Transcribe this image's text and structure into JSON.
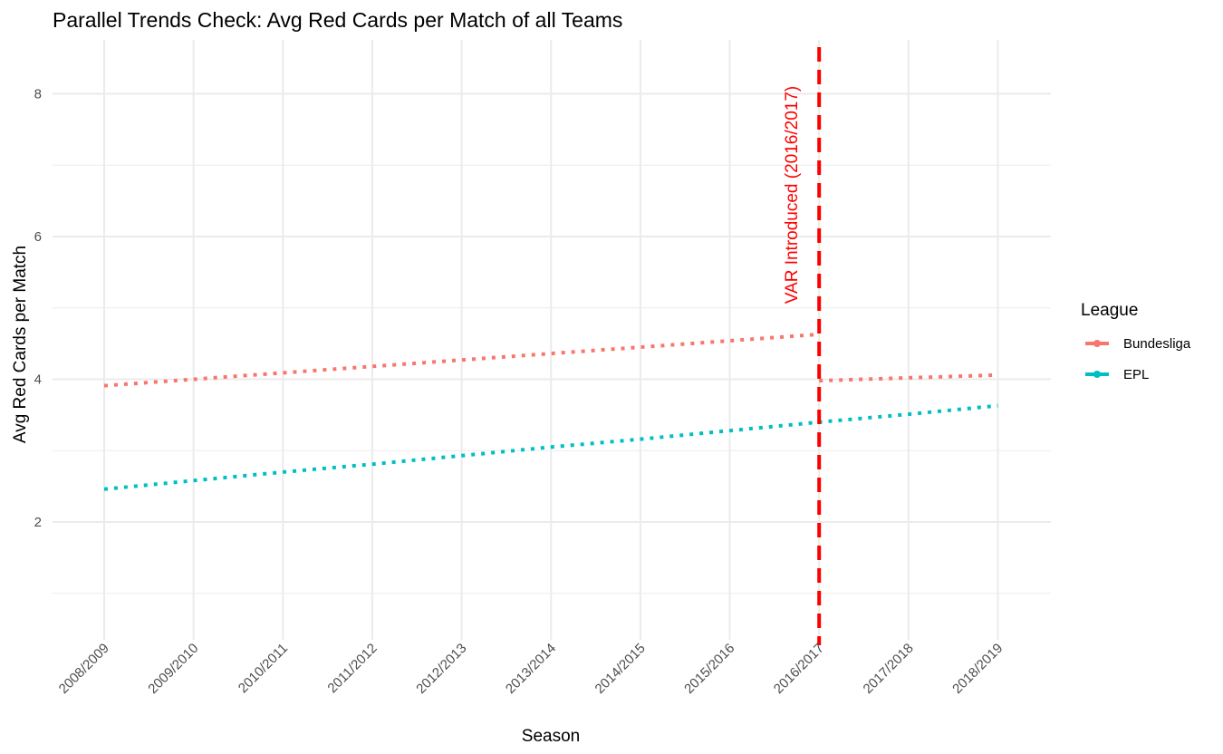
{
  "chart_data": {
    "type": "line",
    "title": "Parallel Trends Check: Avg Red Cards per Match of all Teams",
    "xlabel": "Season",
    "ylabel": "Avg Red Cards per Match",
    "categories": [
      "2008/2009",
      "2009/2010",
      "2010/2011",
      "2011/2012",
      "2012/2013",
      "2013/2014",
      "2014/2015",
      "2015/2016",
      "2016/2017",
      "2017/2018",
      "2018/2019"
    ],
    "ylim": [
      0.3,
      8.75
    ],
    "y_ticks": [
      2,
      4,
      6,
      8
    ],
    "y_tick_labels": [
      "2",
      "4",
      "6",
      "8"
    ],
    "grid": true,
    "legend": {
      "title": "League",
      "position": "right"
    },
    "series": [
      {
        "name": "Bundesliga",
        "color": "#F8766D",
        "segments": [
          {
            "x": [
              "2008/2009",
              "2009/2010",
              "2010/2011",
              "2011/2012",
              "2012/2013",
              "2013/2014",
              "2014/2015",
              "2015/2016",
              "2016/2017"
            ],
            "values": [
              3.91,
              4.0,
              4.09,
              4.18,
              4.27,
              4.36,
              4.45,
              4.54,
              4.63
            ]
          },
          {
            "x": [
              "2016/2017",
              "2017/2018",
              "2018/2019"
            ],
            "values": [
              3.98,
              4.02,
              4.06
            ]
          }
        ]
      },
      {
        "name": "EPL",
        "color": "#00BFC4",
        "segments": [
          {
            "x": [
              "2008/2009",
              "2009/2010",
              "2010/2011",
              "2011/2012",
              "2012/2013",
              "2013/2014",
              "2014/2015",
              "2015/2016",
              "2016/2017",
              "2017/2018",
              "2018/2019"
            ],
            "values": [
              2.46,
              2.58,
              2.7,
              2.81,
              2.93,
              3.05,
              3.16,
              3.28,
              3.4,
              3.51,
              3.63
            ]
          }
        ]
      }
    ],
    "annotations": [
      {
        "type": "vline",
        "x": "2016/2017",
        "color": "#FF0000",
        "label": "VAR Introduced (2016/2017)"
      }
    ]
  }
}
